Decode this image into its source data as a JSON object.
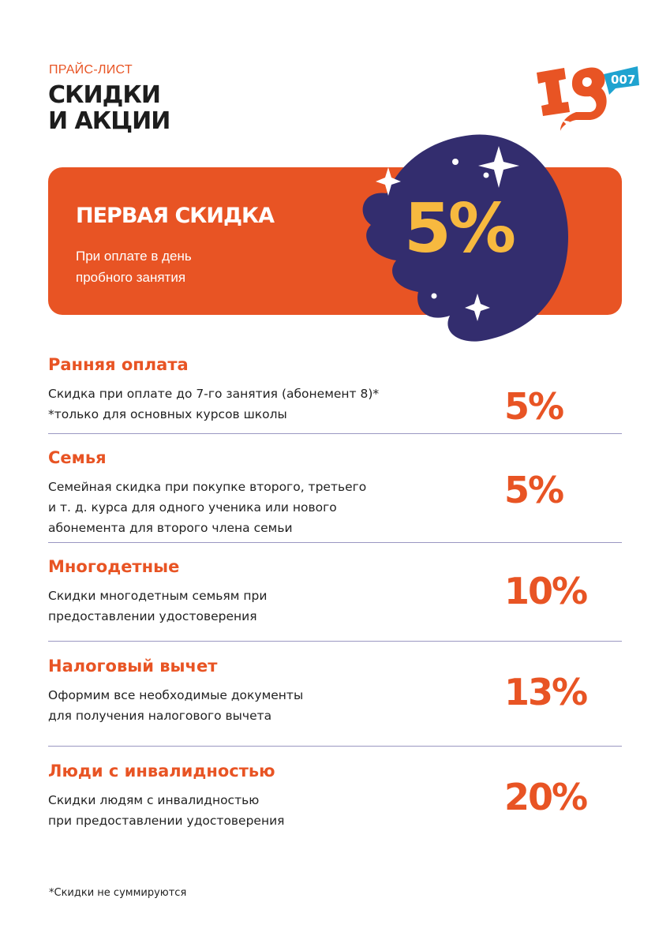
{
  "header": {
    "kicker": "ПРАЙС-ЛИСТ",
    "title_line1": "СКИДКИ",
    "title_line2": "И АКЦИИ"
  },
  "logo": {
    "text": "IG",
    "badge": "007"
  },
  "banner": {
    "title": "ПЕРВАЯ СКИДКА",
    "subtitle_line1": "При оплате в день",
    "subtitle_line2": "пробного занятия",
    "value": "5%"
  },
  "colors": {
    "accent": "#E85424",
    "navy": "#332D6E",
    "yellow": "#F7B93F",
    "badge": "#1FA3D0"
  },
  "discounts": [
    {
      "title": "Ранняя оплата",
      "lines": [
        "Скидка при оплате до 7-го занятия (абонемент 8)*",
        "*только для основных курсов школы"
      ],
      "value": "5%"
    },
    {
      "title": "Семья",
      "lines": [
        "Семейная скидка при покупке второго, третьего",
        "и т. д. курса для одного ученика или нового",
        "абонемента для второго члена семьи"
      ],
      "value": "5%"
    },
    {
      "title": "Многодетные",
      "lines": [
        "Скидки многодетным семьям при",
        "предоставлении удостоверения"
      ],
      "value": "10%"
    },
    {
      "title": "Налоговый вычет",
      "lines": [
        "Оформим все необходимые документы",
        "для получения налогового вычета"
      ],
      "value": "13%"
    },
    {
      "title": "Люди с инвалидностью",
      "lines": [
        "Скидки людям с инвалидностью",
        "при предоставлении удостоверения"
      ],
      "value": "20%"
    }
  ],
  "footnote": "*Скидки не суммируются"
}
